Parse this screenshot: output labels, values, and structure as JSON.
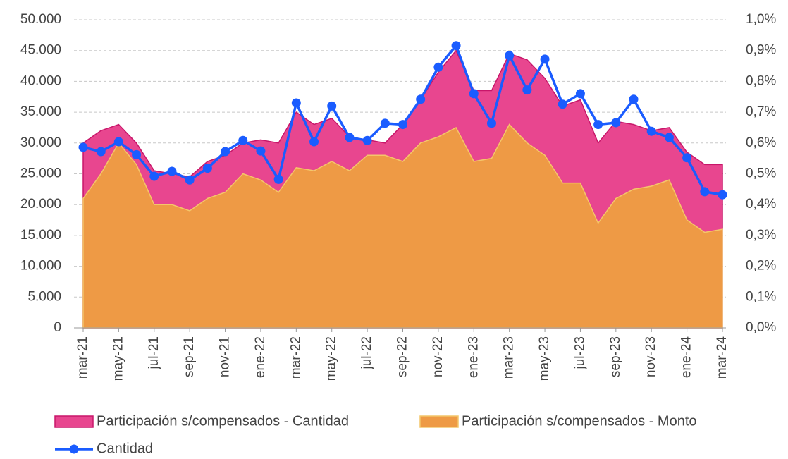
{
  "chart_data": {
    "type": "area-line",
    "categories": [
      "mar-21",
      null,
      "may-21",
      null,
      "jul-21",
      null,
      "sep-21",
      null,
      "nov-21",
      null,
      "ene-22",
      null,
      "mar-22",
      null,
      "may-22",
      null,
      "jul-22",
      null,
      "sep-22",
      null,
      "nov-22",
      null,
      "ene-23",
      null,
      "mar-23",
      null,
      "may-23",
      null,
      "jul-23",
      null,
      "sep-23",
      null,
      "nov-23",
      null,
      "ene-24",
      null,
      "mar-24"
    ],
    "series": [
      {
        "name": "Participación s/compensados - Cantidad",
        "type": "area",
        "axis": "y2",
        "color": "#e8468f",
        "edge": "#c8166a",
        "values": [
          0.6,
          0.64,
          0.66,
          0.6,
          0.51,
          0.5,
          0.49,
          0.54,
          0.56,
          0.6,
          0.61,
          0.6,
          0.7,
          0.66,
          0.68,
          0.62,
          0.61,
          0.6,
          0.66,
          0.74,
          0.83,
          0.9,
          0.77,
          0.77,
          0.89,
          0.87,
          0.81,
          0.72,
          0.74,
          0.6,
          0.67,
          0.66,
          0.64,
          0.65,
          0.57,
          0.53,
          0.53
        ]
      },
      {
        "name": "Participación s/compensados - Monto",
        "type": "area",
        "axis": "y2",
        "color": "#ee9a45",
        "edge": "#f4c66a",
        "values": [
          0.42,
          0.5,
          0.6,
          0.53,
          0.4,
          0.4,
          0.38,
          0.42,
          0.44,
          0.5,
          0.48,
          0.44,
          0.52,
          0.51,
          0.54,
          0.51,
          0.56,
          0.56,
          0.54,
          0.6,
          0.62,
          0.65,
          0.54,
          0.55,
          0.66,
          0.6,
          0.56,
          0.47,
          0.47,
          0.34,
          0.42,
          0.45,
          0.46,
          0.48,
          0.35,
          0.31,
          0.32
        ]
      },
      {
        "name": "Cantidad",
        "type": "line",
        "color": "#1a5cff",
        "values": [
          29300,
          28600,
          30200,
          28100,
          24600,
          25400,
          24000,
          25900,
          28600,
          30400,
          28700,
          24100,
          36500,
          30200,
          36000,
          30900,
          30400,
          33200,
          33000,
          37100,
          42300,
          45800,
          38000,
          33200,
          44200,
          38600,
          43600,
          36300,
          38000,
          33000,
          33300,
          37100,
          31900,
          30900,
          27600,
          22100,
          21600
        ]
      }
    ],
    "ylim": [
      0,
      50000
    ],
    "yticks": [
      0,
      {
        "value": 5000,
        "label": "5.000"
      },
      {
        "value": 10000,
        "label": "10.000"
      },
      {
        "value": 15000,
        "label": "15.000"
      },
      {
        "value": 20000,
        "label": "20.000"
      },
      {
        "value": 25000,
        "label": "25.000"
      },
      {
        "value": 30000,
        "label": "30.000"
      },
      {
        "value": 35000,
        "label": "35.000"
      },
      {
        "value": 40000,
        "label": "40.000"
      },
      {
        "value": 45000,
        "label": "45.000"
      },
      {
        "value": 50000,
        "label": "50.000"
      }
    ],
    "y2lim": [
      0,
      1
    ],
    "y2ticks": [
      {
        "value": 0,
        "label": "0,0%"
      },
      {
        "value": 0.1,
        "label": "0,1%"
      },
      {
        "value": 0.2,
        "label": "0,2%"
      },
      {
        "value": 0.3,
        "label": "0,3%"
      },
      {
        "value": 0.4,
        "label": "0,4%"
      },
      {
        "value": 0.5,
        "label": "0,5%"
      },
      {
        "value": 0.6,
        "label": "0,6%"
      },
      {
        "value": 0.7,
        "label": "0,7%"
      },
      {
        "value": 0.8,
        "label": "0,8%"
      },
      {
        "value": 0.9,
        "label": "0,9%"
      },
      {
        "value": 1,
        "label": "1,0%"
      }
    ],
    "grid": true,
    "legend": "bottom"
  }
}
